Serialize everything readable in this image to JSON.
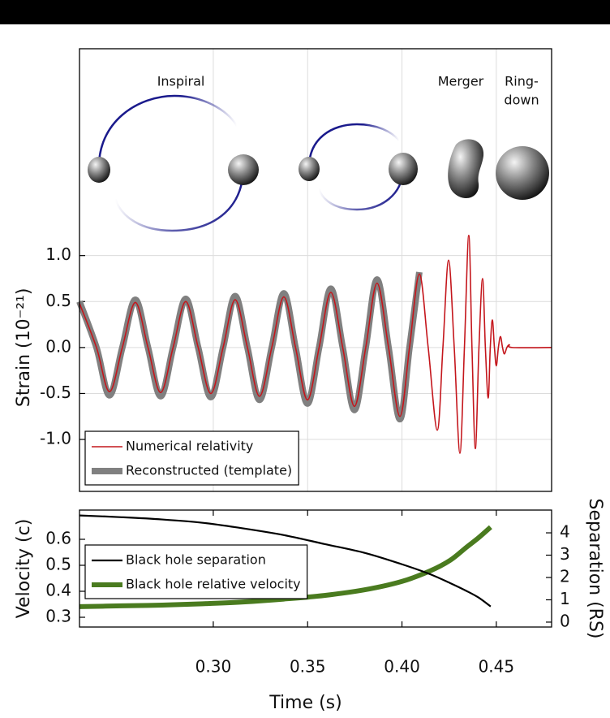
{
  "chart_data": [
    {
      "type": "line",
      "ylabel": "Strain (10⁻²¹)",
      "annotations": [
        "Inspiral",
        "Merger",
        "Ring-",
        "down"
      ],
      "x": [
        0.2291,
        0.2381,
        0.245,
        0.2518,
        0.2587,
        0.2654,
        0.2721,
        0.2787,
        0.2854,
        0.292,
        0.2987,
        0.3052,
        0.3116,
        0.3181,
        0.3245,
        0.331,
        0.3374,
        0.3436,
        0.3499,
        0.3561,
        0.3623,
        0.3686,
        0.3748,
        0.3808,
        0.3868,
        0.3929,
        0.3989,
        0.404,
        0.4092,
        0.4139,
        0.4187,
        0.4217,
        0.4247,
        0.4277,
        0.4307,
        0.4331,
        0.4354,
        0.4371,
        0.4389,
        0.4408,
        0.4427,
        0.4442,
        0.4457,
        0.4468,
        0.4479,
        0.449,
        0.45,
        0.4511,
        0.4522,
        0.4533,
        0.4543,
        0.4556,
        0.4569,
        0.4586,
        0.4793
      ],
      "series": [
        {
          "name": "Numerical relativity",
          "color": "#c4161c",
          "linewidth": 1.6,
          "values": [
            0.48,
            0,
            -0.48,
            0,
            0.49,
            0,
            -0.49,
            0,
            0.5,
            0,
            -0.5,
            0,
            0.52,
            0,
            -0.53,
            0,
            0.55,
            0,
            -0.57,
            0,
            0.6,
            0,
            -0.64,
            0,
            0.7,
            0,
            -0.75,
            0,
            0.8,
            0,
            -0.9,
            0,
            0.95,
            0,
            -1.15,
            0,
            1.22,
            0,
            -1.1,
            0,
            0.75,
            0,
            -0.55,
            0,
            0.3,
            0,
            -0.2,
            0,
            0.12,
            0,
            -0.07,
            0,
            0.03,
            0,
            0
          ]
        },
        {
          "name": "Reconstructed (template)",
          "color": "#808080",
          "linewidth": 8,
          "values": [
            0.5,
            0,
            -0.52,
            0,
            0.52,
            0,
            -0.53,
            0,
            0.53,
            0,
            -0.54,
            0,
            0.56,
            0,
            -0.57,
            0,
            0.59,
            0,
            -0.61,
            0,
            0.64,
            0,
            -0.68,
            0,
            0.74,
            0,
            -0.78,
            0,
            0.82,
            null,
            null,
            null,
            null,
            null,
            null,
            null,
            null,
            null,
            null,
            null,
            null,
            null,
            null,
            null,
            null,
            null,
            null,
            null,
            null,
            null,
            null,
            null,
            null,
            null,
            null
          ]
        }
      ],
      "xlim": [
        0.2291,
        0.4793
      ],
      "ylim": [
        -1.565,
        3.25
      ],
      "xticks": [
        0.3,
        0.35,
        0.4,
        0.45
      ],
      "yticks": [
        {
          "value": 1,
          "label": "1.0"
        },
        0.5,
        {
          "value": 0,
          "label": "0.0"
        },
        -0.5,
        {
          "value": -1,
          "label": "-1.0"
        }
      ],
      "grid": true,
      "legend": "lower left"
    },
    {
      "type": "line",
      "xlabel": "Time (s)",
      "ylabel": "Velocity (c)",
      "y2label": "Separation (RS)",
      "x": [
        0.2291,
        0.2514,
        0.2729,
        0.2944,
        0.3159,
        0.3374,
        0.3589,
        0.3804,
        0.3997,
        0.4148,
        0.4255,
        0.4341,
        0.4406,
        0.447
      ],
      "series": [
        {
          "name": "Black hole separation",
          "color": "#000000",
          "linewidth": 2.2,
          "axis": "y2",
          "values": [
            4.78,
            4.7,
            4.6,
            4.45,
            4.2,
            3.9,
            3.5,
            3.1,
            2.6,
            2.15,
            1.75,
            1.4,
            1.1,
            0.7
          ]
        },
        {
          "name": "Black hole relative velocity",
          "color": "#4a7b1f",
          "linewidth": 6,
          "values": [
            0.341,
            0.344,
            0.347,
            0.352,
            0.359,
            0.37,
            0.384,
            0.406,
            0.4375,
            0.478,
            0.519,
            0.569,
            0.606,
            0.647
          ]
        }
      ],
      "xlim": [
        0.2291,
        0.4793
      ],
      "ylim": [
        0.2625,
        0.7125
      ],
      "y2lim": [
        -0.22,
        5.02
      ],
      "xticks": [
        {
          "value": 0.3,
          "label": "0.30"
        },
        0.35,
        {
          "value": 0.4,
          "label": "0.40"
        },
        0.45
      ],
      "yticks": [
        0.3,
        0.4,
        0.5,
        0.6
      ],
      "y2ticks": [
        0,
        1,
        2,
        3,
        4
      ],
      "grid": false,
      "legend": "center left"
    }
  ]
}
